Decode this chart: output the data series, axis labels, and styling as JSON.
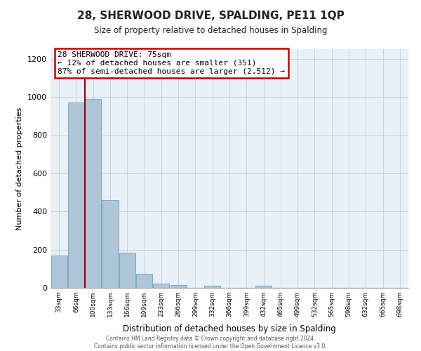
{
  "title": "28, SHERWOOD DRIVE, SPALDING, PE11 1QP",
  "subtitle": "Size of property relative to detached houses in Spalding",
  "xlabel": "Distribution of detached houses by size in Spalding",
  "ylabel": "Number of detached properties",
  "bar_labels": [
    "33sqm",
    "66sqm",
    "100sqm",
    "133sqm",
    "166sqm",
    "199sqm",
    "233sqm",
    "266sqm",
    "299sqm",
    "332sqm",
    "366sqm",
    "399sqm",
    "432sqm",
    "465sqm",
    "499sqm",
    "532sqm",
    "565sqm",
    "598sqm",
    "632sqm",
    "665sqm",
    "698sqm"
  ],
  "bar_values": [
    170,
    970,
    990,
    460,
    185,
    75,
    22,
    15,
    0,
    12,
    0,
    0,
    12,
    0,
    0,
    0,
    0,
    0,
    0,
    0,
    0
  ],
  "bar_color": "#aec6d8",
  "bar_edge_color": "#7baac7",
  "plot_bg_color": "#e8f0f8",
  "vline_color": "#990000",
  "vline_x_idx": 1.5,
  "ylim": [
    0,
    1250
  ],
  "yticks": [
    0,
    200,
    400,
    600,
    800,
    1000,
    1200
  ],
  "annotation_title": "28 SHERWOOD DRIVE: 75sqm",
  "annotation_line1": "← 12% of detached houses are smaller (351)",
  "annotation_line2": "87% of semi-detached houses are larger (2,512) →",
  "annotation_box_color": "#ffffff",
  "annotation_box_edge": "#cc0000",
  "footer_line1": "Contains HM Land Registry data © Crown copyright and database right 2024.",
  "footer_line2": "Contains public sector information licensed under the Open Government Licence v3.0.",
  "background_color": "#ffffff",
  "grid_color": "#cccccc"
}
